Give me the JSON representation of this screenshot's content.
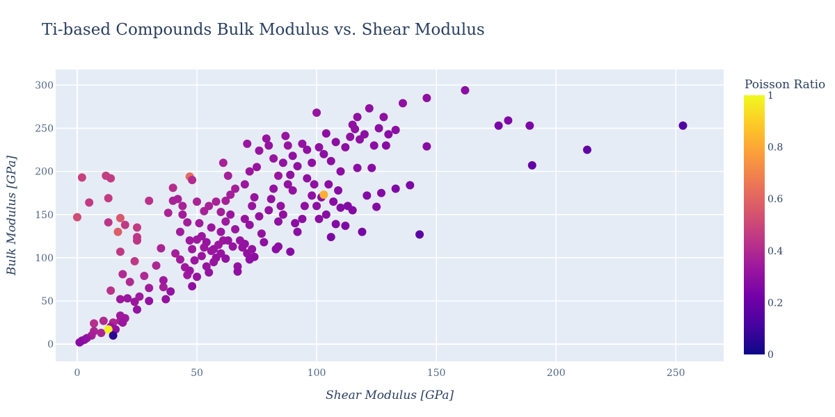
{
  "chart_data": {
    "type": "scatter",
    "title": "Ti-based Compounds Bulk Modulus vs. Shear Modulus",
    "xlabel": "Shear Modulus [GPa]",
    "ylabel": "Bulk Modulus [GPa]",
    "xlim": [
      -9,
      270
    ],
    "ylim": [
      -20,
      318
    ],
    "xticks": [
      0,
      50,
      100,
      150,
      200,
      250
    ],
    "yticks": [
      0,
      50,
      100,
      150,
      200,
      250,
      300
    ],
    "grid": true,
    "colorbar": {
      "title": "Poisson Ratio",
      "range": [
        0,
        1
      ],
      "ticks": [
        0,
        0.2,
        0.4,
        0.6,
        0.8,
        1
      ],
      "tick_labels": [
        "0",
        "0.2",
        "0.4",
        "0.6",
        "0.8",
        "1"
      ],
      "colorscale": [
        "#0d0887",
        "#46039f",
        "#7201a8",
        "#9c179e",
        "#bd3786",
        "#d8576b",
        "#ed7953",
        "#fb9f3a",
        "#fdca26",
        "#f0f921"
      ]
    },
    "colors": {
      "plot_bg": "#e5ecf6",
      "grid": "#ffffff",
      "text": "#2a3f5f"
    },
    "points": [
      [
        0,
        147,
        0.52
      ],
      [
        2,
        193,
        0.48
      ],
      [
        5,
        164,
        0.46
      ],
      [
        12,
        195,
        0.47
      ],
      [
        14,
        192,
        0.46
      ],
      [
        13,
        169,
        0.46
      ],
      [
        13,
        141,
        0.44
      ],
      [
        18,
        146,
        0.56
      ],
      [
        17,
        130,
        0.58
      ],
      [
        20,
        138,
        0.45
      ],
      [
        25,
        135,
        0.46
      ],
      [
        25,
        124,
        0.45
      ],
      [
        25,
        120,
        0.44
      ],
      [
        18,
        107,
        0.45
      ],
      [
        24,
        96,
        0.45
      ],
      [
        30,
        166,
        0.43
      ],
      [
        40,
        181,
        0.41
      ],
      [
        47,
        194,
        0.62
      ],
      [
        48,
        190,
        0.4
      ],
      [
        14,
        62,
        0.43
      ],
      [
        19,
        81,
        0.4
      ],
      [
        22,
        72,
        0.4
      ],
      [
        28,
        79,
        0.4
      ],
      [
        33,
        91,
        0.39
      ],
      [
        35,
        111,
        0.38
      ],
      [
        38,
        152,
        0.38
      ],
      [
        36,
        66,
        0.36
      ],
      [
        40,
        166,
        0.37
      ],
      [
        42,
        168,
        0.37
      ],
      [
        44,
        160,
        0.37
      ],
      [
        41,
        105,
        0.36
      ],
      [
        43,
        98,
        0.35
      ],
      [
        45,
        89,
        0.34
      ],
      [
        46,
        80,
        0.34
      ],
      [
        47,
        85,
        0.33
      ],
      [
        48,
        67,
        0.3
      ],
      [
        50,
        78,
        0.32
      ],
      [
        39,
        61,
        0.31
      ],
      [
        37,
        52,
        0.31
      ],
      [
        30,
        50,
        0.31
      ],
      [
        25,
        40,
        0.31
      ],
      [
        21,
        53,
        0.33
      ],
      [
        18,
        52,
        0.33
      ],
      [
        24,
        49,
        0.33
      ],
      [
        26,
        55,
        0.34
      ],
      [
        30,
        65,
        0.35
      ],
      [
        36,
        74,
        0.34
      ],
      [
        7,
        24,
        0.42
      ],
      [
        11,
        27,
        0.4
      ],
      [
        15,
        25,
        0.39
      ],
      [
        18,
        27,
        0.38
      ],
      [
        20,
        30,
        0.34
      ],
      [
        18,
        33,
        0.34
      ],
      [
        19,
        25,
        0.33
      ],
      [
        16,
        17,
        0.3
      ],
      [
        14,
        20,
        0.32
      ],
      [
        7,
        15,
        0.38
      ],
      [
        10,
        13,
        0.38
      ],
      [
        6,
        10,
        0.36
      ],
      [
        4,
        7,
        0.32
      ],
      [
        3,
        5,
        0.3
      ],
      [
        2,
        4,
        0.3
      ],
      [
        1,
        2,
        0.28
      ],
      [
        13,
        17,
        0.98
      ],
      [
        15,
        10,
        0.06
      ],
      [
        50,
        165,
        0.38
      ],
      [
        53,
        154,
        0.37
      ],
      [
        55,
        160,
        0.37
      ],
      [
        58,
        165,
        0.37
      ],
      [
        60,
        153,
        0.36
      ],
      [
        62,
        166,
        0.36
      ],
      [
        64,
        173,
        0.36
      ],
      [
        66,
        180,
        0.36
      ],
      [
        61,
        210,
        0.37
      ],
      [
        63,
        195,
        0.36
      ],
      [
        70,
        185,
        0.33
      ],
      [
        72,
        200,
        0.33
      ],
      [
        75,
        205,
        0.32
      ],
      [
        71,
        232,
        0.33
      ],
      [
        76,
        224,
        0.32
      ],
      [
        79,
        238,
        0.32
      ],
      [
        80,
        230,
        0.31
      ],
      [
        82,
        215,
        0.32
      ],
      [
        84,
        195,
        0.33
      ],
      [
        86,
        210,
        0.31
      ],
      [
        87,
        241,
        0.32
      ],
      [
        88,
        230,
        0.32
      ],
      [
        90,
        218,
        0.3
      ],
      [
        92,
        206,
        0.3
      ],
      [
        94,
        232,
        0.31
      ],
      [
        96,
        225,
        0.3
      ],
      [
        98,
        210,
        0.3
      ],
      [
        100,
        268,
        0.32
      ],
      [
        101,
        228,
        0.3
      ],
      [
        103,
        220,
        0.29
      ],
      [
        104,
        244,
        0.29
      ],
      [
        106,
        212,
        0.29
      ],
      [
        108,
        234,
        0.29
      ],
      [
        110,
        200,
        0.29
      ],
      [
        112,
        228,
        0.29
      ],
      [
        114,
        240,
        0.3
      ],
      [
        115,
        254,
        0.3
      ],
      [
        116,
        249,
        0.3
      ],
      [
        117,
        263,
        0.3
      ],
      [
        118,
        237,
        0.3
      ],
      [
        120,
        243,
        0.29
      ],
      [
        122,
        273,
        0.3
      ],
      [
        124,
        230,
        0.29
      ],
      [
        126,
        250,
        0.29
      ],
      [
        128,
        263,
        0.3
      ],
      [
        130,
        243,
        0.28
      ],
      [
        133,
        248,
        0.29
      ],
      [
        136,
        279,
        0.3
      ],
      [
        146,
        285,
        0.3
      ],
      [
        146,
        229,
        0.28
      ],
      [
        162,
        294,
        0.29
      ],
      [
        176,
        253,
        0.24
      ],
      [
        180,
        259,
        0.26
      ],
      [
        189,
        253,
        0.25
      ],
      [
        190,
        207,
        0.18
      ],
      [
        213,
        225,
        0.18
      ],
      [
        253,
        253,
        0.14
      ],
      [
        52,
        125,
        0.33
      ],
      [
        54,
        118,
        0.32
      ],
      [
        56,
        135,
        0.33
      ],
      [
        57,
        110,
        0.32
      ],
      [
        58,
        100,
        0.31
      ],
      [
        60,
        130,
        0.33
      ],
      [
        62,
        142,
        0.34
      ],
      [
        64,
        150,
        0.33
      ],
      [
        66,
        133,
        0.33
      ],
      [
        68,
        120,
        0.32
      ],
      [
        69,
        112,
        0.31
      ],
      [
        70,
        145,
        0.32
      ],
      [
        72,
        138,
        0.31
      ],
      [
        73,
        160,
        0.32
      ],
      [
        74,
        170,
        0.32
      ],
      [
        76,
        148,
        0.31
      ],
      [
        77,
        128,
        0.31
      ],
      [
        78,
        118,
        0.3
      ],
      [
        80,
        155,
        0.31
      ],
      [
        81,
        168,
        0.31
      ],
      [
        82,
        180,
        0.31
      ],
      [
        84,
        142,
        0.3
      ],
      [
        85,
        160,
        0.31
      ],
      [
        86,
        150,
        0.3
      ],
      [
        88,
        185,
        0.31
      ],
      [
        89,
        196,
        0.3
      ],
      [
        90,
        178,
        0.31
      ],
      [
        91,
        140,
        0.29
      ],
      [
        92,
        130,
        0.29
      ],
      [
        94,
        145,
        0.29
      ],
      [
        95,
        160,
        0.3
      ],
      [
        96,
        192,
        0.3
      ],
      [
        98,
        172,
        0.3
      ],
      [
        99,
        185,
        0.3
      ],
      [
        100,
        160,
        0.29
      ],
      [
        101,
        145,
        0.29
      ],
      [
        102,
        170,
        0.29
      ],
      [
        103,
        173,
        0.82
      ],
      [
        104,
        150,
        0.28
      ],
      [
        105,
        185,
        0.29
      ],
      [
        106,
        124,
        0.25
      ],
      [
        107,
        165,
        0.28
      ],
      [
        108,
        139,
        0.27
      ],
      [
        109,
        178,
        0.28
      ],
      [
        110,
        158,
        0.27
      ],
      [
        112,
        137,
        0.26
      ],
      [
        113,
        160,
        0.27
      ],
      [
        115,
        155,
        0.27
      ],
      [
        117,
        204,
        0.29
      ],
      [
        119,
        130,
        0.24
      ],
      [
        121,
        172,
        0.27
      ],
      [
        123,
        204,
        0.28
      ],
      [
        125,
        159,
        0.27
      ],
      [
        127,
        175,
        0.27
      ],
      [
        129,
        230,
        0.28
      ],
      [
        133,
        180,
        0.26
      ],
      [
        139,
        184,
        0.25
      ],
      [
        143,
        127,
        0.17
      ],
      [
        43,
        130,
        0.35
      ],
      [
        44,
        150,
        0.35
      ],
      [
        46,
        141,
        0.35
      ],
      [
        47,
        120,
        0.34
      ],
      [
        48,
        110,
        0.34
      ],
      [
        49,
        97,
        0.33
      ],
      [
        50,
        121,
        0.34
      ],
      [
        51,
        140,
        0.35
      ],
      [
        52,
        102,
        0.33
      ],
      [
        53,
        112,
        0.33
      ],
      [
        54,
        90,
        0.32
      ],
      [
        55,
        83,
        0.31
      ],
      [
        56,
        108,
        0.33
      ],
      [
        57,
        95,
        0.32
      ],
      [
        59,
        115,
        0.33
      ],
      [
        60,
        105,
        0.32
      ],
      [
        61,
        120,
        0.33
      ],
      [
        62,
        99,
        0.31
      ],
      [
        63,
        120,
        0.32
      ],
      [
        65,
        113,
        0.32
      ],
      [
        67,
        90,
        0.31
      ],
      [
        67,
        84,
        0.3
      ],
      [
        70,
        116,
        0.31
      ],
      [
        71,
        105,
        0.31
      ],
      [
        72,
        98,
        0.3
      ],
      [
        73,
        110,
        0.31
      ],
      [
        74,
        101,
        0.29
      ],
      [
        83,
        110,
        0.29
      ],
      [
        84,
        113,
        0.29
      ],
      [
        89,
        107,
        0.28
      ]
    ]
  }
}
